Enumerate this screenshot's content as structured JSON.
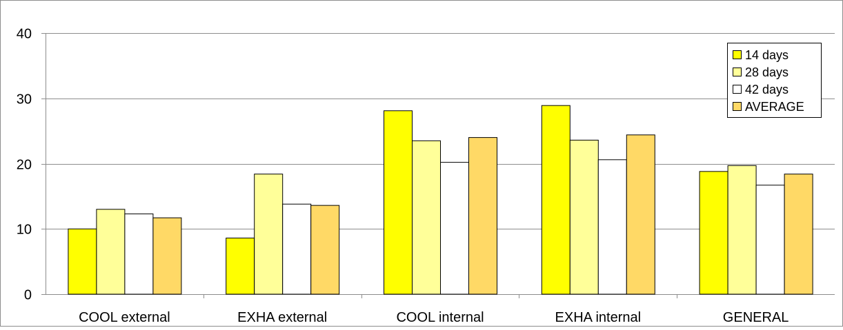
{
  "chart_data": {
    "type": "bar",
    "title": "",
    "xlabel": "",
    "ylabel": "",
    "ylim": [
      0,
      40
    ],
    "yticks": [
      0,
      10,
      20,
      30,
      40
    ],
    "grid": true,
    "legend_position": "top-right",
    "categories": [
      "COOL external",
      "EXHA external",
      "COOL internal",
      "EXHA internal",
      "GENERAL"
    ],
    "series": [
      {
        "name": "14 days",
        "color": "#ffff00",
        "values": [
          10.0,
          8.6,
          28.1,
          28.9,
          18.8
        ]
      },
      {
        "name": "28 days",
        "color": "#ffff99",
        "values": [
          13.0,
          18.4,
          23.5,
          23.6,
          19.7
        ]
      },
      {
        "name": "42 days",
        "color": "#ffffff",
        "values": [
          12.3,
          13.8,
          20.2,
          20.6,
          16.7
        ]
      },
      {
        "name": "AVERAGE",
        "color": "#ffd966",
        "values": [
          11.7,
          13.6,
          24.0,
          24.4,
          18.4
        ]
      }
    ]
  }
}
